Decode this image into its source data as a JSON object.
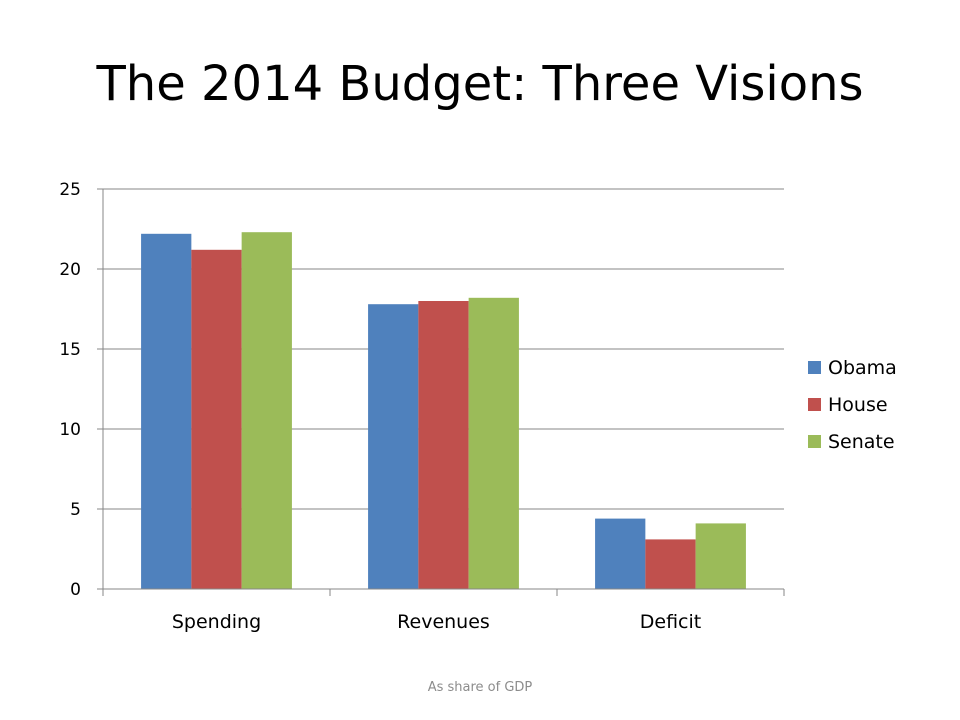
{
  "slide": {
    "title": "The 2014 Budget: Three Visions",
    "footnote": "As share of GDP"
  },
  "chart_data": {
    "type": "bar",
    "categories": [
      "Spending",
      "Revenues",
      "Deficit"
    ],
    "series": [
      {
        "name": "Obama",
        "color": "#4F81BD",
        "values": [
          22.2,
          17.8,
          4.4
        ]
      },
      {
        "name": "House",
        "color": "#C0504D",
        "values": [
          21.2,
          18.0,
          3.1
        ]
      },
      {
        "name": "Senate",
        "color": "#9BBB59",
        "values": [
          22.3,
          18.2,
          4.1
        ]
      }
    ],
    "ylim": [
      0,
      25
    ],
    "yticks": [
      0,
      5,
      10,
      15,
      20,
      25
    ],
    "grid": true,
    "legend": "right",
    "xlabel": "",
    "ylabel": ""
  }
}
